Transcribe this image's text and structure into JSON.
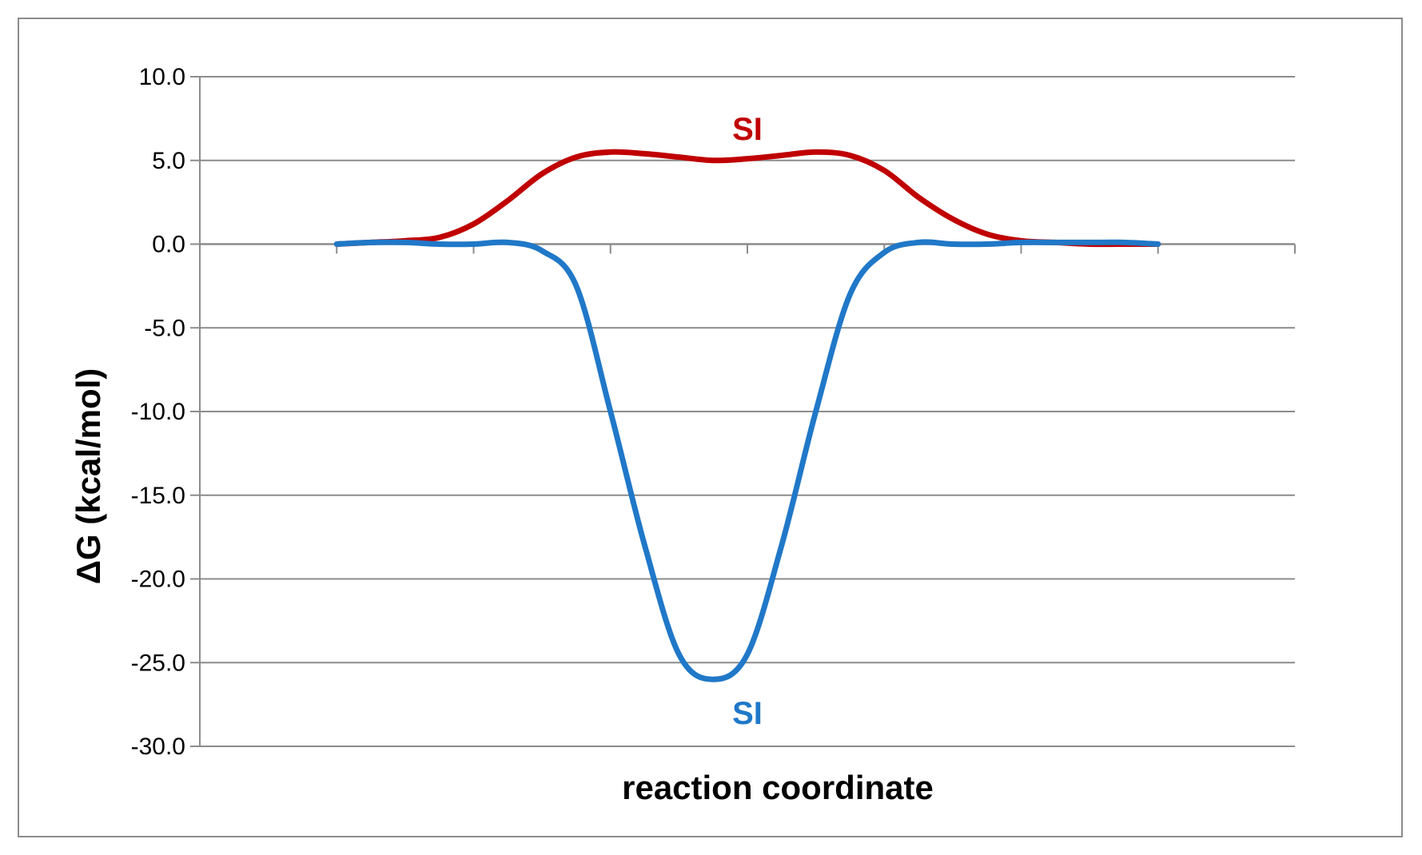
{
  "chart_data": {
    "type": "line",
    "xlabel": "reaction coordinate",
    "ylabel": "ΔG (kcal/mol)",
    "ylim": [
      -30,
      10
    ],
    "yticks": [
      "10.0",
      "5.0",
      "0.0",
      "-5.0",
      "-10.0",
      "-15.0",
      "-20.0",
      "-25.0",
      "-30.0"
    ],
    "yticks_values": [
      10,
      5,
      0,
      -5,
      -10,
      -15,
      -20,
      -25,
      -30
    ],
    "grid": true,
    "x": [
      0,
      0.25,
      0.5,
      0.75,
      1,
      1.25,
      1.5,
      1.75,
      2,
      2.25,
      2.5,
      2.75,
      3,
      3.25,
      3.5,
      3.75,
      4,
      4.25,
      4.5,
      4.75,
      5,
      5.25,
      5.5,
      5.75,
      6
    ],
    "series": [
      {
        "name": "SI",
        "color": "#c00000",
        "values": [
          0.0,
          0.1,
          0.2,
          0.4,
          1.2,
          2.6,
          4.2,
          5.2,
          5.5,
          5.4,
          5.2,
          5.0,
          5.1,
          5.3,
          5.5,
          5.3,
          4.4,
          2.8,
          1.5,
          0.6,
          0.2,
          0.1,
          0.0,
          0.0,
          0.0
        ]
      },
      {
        "name": "SI",
        "color": "#2078c8",
        "values": [
          0.0,
          0.1,
          0.1,
          0.0,
          0.0,
          0.1,
          -0.4,
          -2.5,
          -10.0,
          -18.0,
          -24.5,
          -26.0,
          -24.5,
          -18.0,
          -10.0,
          -3.0,
          -0.5,
          0.1,
          0.0,
          0.0,
          0.1,
          0.1,
          0.1,
          0.1,
          0.0
        ]
      }
    ],
    "series_labels": [
      {
        "text": "SI",
        "color": "#c00000",
        "x": 3.0,
        "y": 6.9
      },
      {
        "text": "SI",
        "color": "#2078c8",
        "x": 3.0,
        "y": -28.0
      }
    ]
  }
}
